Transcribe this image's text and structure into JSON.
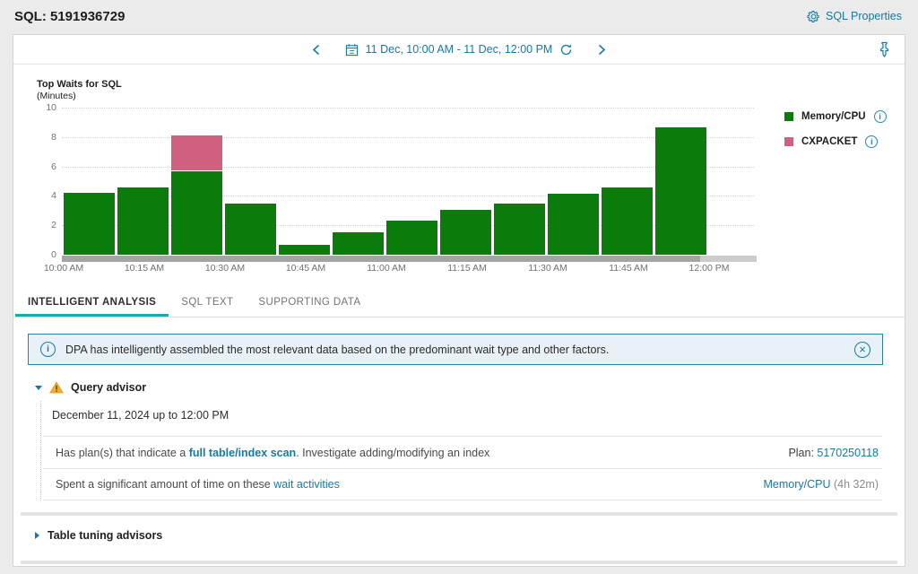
{
  "header": {
    "title": "SQL: 5191936729",
    "sql_properties_label": "SQL Properties"
  },
  "toolbar": {
    "date_range": "11 Dec, 10:00 AM - 11 Dec, 12:00 PM"
  },
  "icons": {
    "sql_properties": "gear-icon",
    "prev": "chevron-left-icon",
    "date_picker": "calendar-icon",
    "refresh": "refresh-icon",
    "next": "chevron-right-icon",
    "pin": "pin-icon",
    "banner": "info-circle-icon",
    "banner_close": "circle-x-icon",
    "query_advisor": "warning-triangle-icon",
    "collapse": "caret-down-icon",
    "expand": "caret-right-icon",
    "legend_info": "info-circle-icon"
  },
  "colors": {
    "accent": "#1579a6",
    "tab_underline": "#1aa6b9",
    "memory_cpu_green": "#0b7b0b",
    "cxpacket_pink": "#d06080",
    "banner_bg": "#e7f1f7",
    "banner_border": "#2980a4",
    "warning_yellow": "#f0ad2f"
  },
  "chart_data": {
    "type": "bar",
    "stacked": true,
    "title": "Top Waits for SQL",
    "subtitle": "(Minutes)",
    "ylabel": "Minutes",
    "ylim": [
      0,
      10
    ],
    "yticks": [
      0,
      2,
      4,
      6,
      8,
      10
    ],
    "grid": "dotted horizontal",
    "bar_interval_minutes": 10,
    "x_tick_labels": [
      "10:00 AM",
      "10:15 AM",
      "10:30 AM",
      "10:45 AM",
      "11:00 AM",
      "11:15 AM",
      "11:30 AM",
      "11:45 AM",
      "12:00 PM"
    ],
    "series": [
      {
        "name": "Memory/CPU",
        "color": "#0b7b0b",
        "values": [
          4.2,
          4.6,
          5.7,
          3.5,
          0.65,
          1.5,
          2.3,
          3.05,
          3.5,
          4.15,
          4.55,
          8.65
        ]
      },
      {
        "name": "CXPACKET",
        "color": "#d06080",
        "values": [
          0,
          0,
          2.4,
          0,
          0,
          0,
          0,
          0,
          0,
          0,
          0,
          0
        ]
      }
    ],
    "legend_position": "right",
    "legend": [
      {
        "label": "Memory/CPU",
        "color": "#0b7b0b"
      },
      {
        "label": "CXPACKET",
        "color": "#d06080"
      }
    ]
  },
  "tabs": [
    {
      "label": "INTELLIGENT ANALYSIS",
      "active": true
    },
    {
      "label": "SQL TEXT",
      "active": false
    },
    {
      "label": "SUPPORTING DATA",
      "active": false
    }
  ],
  "banner": {
    "text": "DPA has intelligently assembled the most relevant data based on the predominant wait type and other factors."
  },
  "query_advisor": {
    "title": "Query advisor",
    "date_line": "December 11, 2024 up to 12:00 PM",
    "rows": [
      {
        "left": [
          {
            "type": "text",
            "value": "Has plan(s) that indicate a "
          },
          {
            "type": "link",
            "value": "full table/index scan",
            "bold": true
          },
          {
            "type": "text",
            "value": ". Investigate adding/modifying an index"
          }
        ],
        "right": [
          {
            "type": "text",
            "value": "Plan: "
          },
          {
            "type": "link",
            "value": "5170250118"
          }
        ]
      },
      {
        "left": [
          {
            "type": "text",
            "value": "Spent a significant amount of time on these "
          },
          {
            "type": "link",
            "value": "wait activities"
          }
        ],
        "right": [
          {
            "type": "link",
            "value": "Memory/CPU"
          },
          {
            "type": "muted",
            "value": " (4h 32m)"
          }
        ]
      }
    ]
  },
  "table_tuning": {
    "title": "Table tuning advisors"
  }
}
